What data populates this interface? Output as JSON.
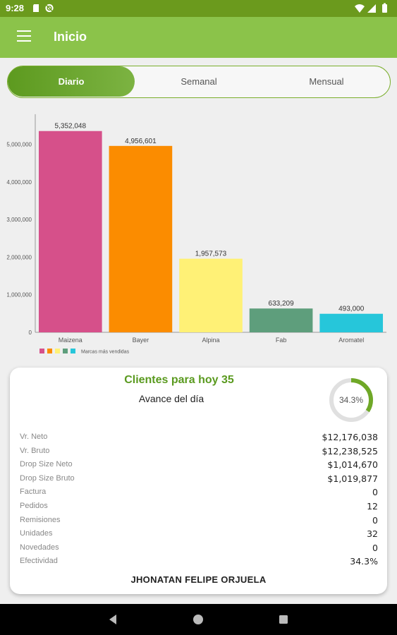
{
  "status_bar": {
    "time": "9:28"
  },
  "app_bar": {
    "title": "Inicio"
  },
  "tabs": [
    {
      "label": "Diario",
      "active": true
    },
    {
      "label": "Semanal",
      "active": false
    },
    {
      "label": "Mensual",
      "active": false
    }
  ],
  "chart_data": {
    "type": "bar",
    "categories": [
      "Maizena",
      "Bayer",
      "Alpina",
      "Fab",
      "Aromatel"
    ],
    "values": [
      5352048,
      4956601,
      1957573,
      633209,
      493000
    ],
    "value_labels": [
      "5,352,048",
      "4,956,601",
      "1,957,573",
      "633,209",
      "493,000"
    ],
    "colors": [
      "#d6508a",
      "#fb8c00",
      "#fff176",
      "#5e9e7c",
      "#26c6da"
    ],
    "ylim": [
      0,
      5800000
    ],
    "yticks": [
      0,
      1000000,
      2000000,
      3000000,
      4000000,
      5000000
    ],
    "ytick_labels": [
      "0",
      "1,000,000",
      "2,000,000",
      "3,000,000",
      "4,000,000",
      "5,000,000"
    ],
    "legend_label": "Marcas más vendidas",
    "legend_position": "bottom-left",
    "grid": false
  },
  "summary": {
    "title": "Clientes para hoy 35",
    "subtitle": "Avance del día",
    "progress_text": "34.3%",
    "progress_value": 0.343,
    "metrics": [
      {
        "label": "Vr. Neto",
        "value": "$12,176,038"
      },
      {
        "label": "Vr. Bruto",
        "value": "$12,238,525"
      },
      {
        "label": "Drop Size Neto",
        "value": "$1,014,670"
      },
      {
        "label": "Drop Size Bruto",
        "value": "$1,019,877"
      },
      {
        "label": "Factura",
        "value": "0"
      },
      {
        "label": "Pedidos",
        "value": "12"
      },
      {
        "label": "Remisiones",
        "value": "0"
      },
      {
        "label": "Unidades",
        "value": "32"
      },
      {
        "label": "Novedades",
        "value": "0"
      },
      {
        "label": "Efectividad",
        "value": "34.3%"
      }
    ],
    "user_name": "JHONATAN FELIPE ORJUELA"
  },
  "colors": {
    "status_bar": "#6b9a1d",
    "app_bar": "#8bc34a",
    "accent": "#5a9a1f",
    "ring_track": "#e0e0e0",
    "ring_progress": "#6fa827"
  },
  "icons": {
    "status_left": [
      "storage-icon",
      "no-sync-icon"
    ],
    "status_right": [
      "wifi-icon",
      "signal-icon",
      "battery-icon"
    ],
    "nav": [
      "back-icon",
      "home-icon",
      "recents-icon"
    ]
  }
}
